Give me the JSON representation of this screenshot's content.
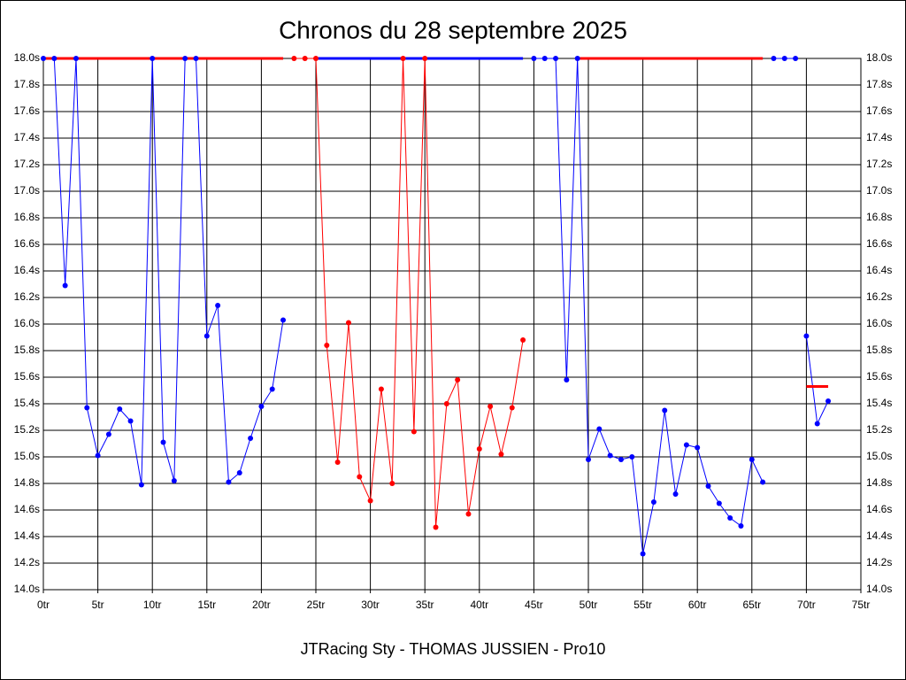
{
  "chart_data": {
    "type": "line",
    "title": "Chronos du 28 septembre 2025",
    "caption": "JTRacing Sty - THOMAS JUSSIEN - Pro10",
    "xlim": [
      0,
      75
    ],
    "xticks": [
      {
        "value": 0,
        "label": "0tr"
      },
      {
        "value": 5,
        "label": "5tr"
      },
      {
        "value": 10,
        "label": "10tr"
      },
      {
        "value": 15,
        "label": "15tr"
      },
      {
        "value": 20,
        "label": "20tr"
      },
      {
        "value": 25,
        "label": "25tr"
      },
      {
        "value": 30,
        "label": "30tr"
      },
      {
        "value": 35,
        "label": "35tr"
      },
      {
        "value": 40,
        "label": "40tr"
      },
      {
        "value": 45,
        "label": "45tr"
      },
      {
        "value": 50,
        "label": "50tr"
      },
      {
        "value": 55,
        "label": "55tr"
      },
      {
        "value": 60,
        "label": "60tr"
      },
      {
        "value": 65,
        "label": "65tr"
      },
      {
        "value": 70,
        "label": "70tr"
      },
      {
        "value": 75,
        "label": "75tr"
      }
    ],
    "ylim": [
      14.0,
      18.0
    ],
    "yticks": [
      {
        "value": 14.0,
        "label": "14.0s"
      },
      {
        "value": 14.2,
        "label": "14.2s"
      },
      {
        "value": 14.4,
        "label": "14.4s"
      },
      {
        "value": 14.6,
        "label": "14.6s"
      },
      {
        "value": 14.8,
        "label": "14.8s"
      },
      {
        "value": 15.0,
        "label": "15.0s"
      },
      {
        "value": 15.2,
        "label": "15.2s"
      },
      {
        "value": 15.4,
        "label": "15.4s"
      },
      {
        "value": 15.6,
        "label": "15.6s"
      },
      {
        "value": 15.8,
        "label": "15.8s"
      },
      {
        "value": 16.0,
        "label": "16.0s"
      },
      {
        "value": 16.2,
        "label": "16.2s"
      },
      {
        "value": 16.4,
        "label": "16.4s"
      },
      {
        "value": 16.6,
        "label": "16.6s"
      },
      {
        "value": 16.8,
        "label": "16.8s"
      },
      {
        "value": 17.0,
        "label": "17.0s"
      },
      {
        "value": 17.2,
        "label": "17.2s"
      },
      {
        "value": 17.4,
        "label": "17.4s"
      },
      {
        "value": 17.6,
        "label": "17.6s"
      },
      {
        "value": 17.8,
        "label": "17.8s"
      },
      {
        "value": 18.0,
        "label": "18.0s"
      }
    ],
    "grid": true,
    "series": [
      {
        "color": "#0000ff",
        "x": [
          0,
          1,
          2,
          3,
          4,
          5,
          6,
          7,
          8,
          9,
          10,
          11,
          12,
          13,
          14,
          15,
          16,
          17,
          18,
          19,
          20,
          21,
          22
        ],
        "values": [
          18.0,
          18.0,
          16.29,
          18.0,
          15.37,
          15.01,
          15.17,
          15.36,
          15.27,
          14.79,
          18.0,
          15.11,
          14.82,
          18.0,
          18.0,
          15.91,
          16.14,
          14.81,
          14.88,
          15.14,
          15.38,
          15.51,
          16.03
        ]
      },
      {
        "color": "#ff0000",
        "x": [
          23,
          24,
          25,
          26,
          27,
          28,
          29,
          30,
          31,
          32,
          33,
          34,
          35,
          36,
          37,
          38,
          39,
          40,
          41,
          42,
          43,
          44
        ],
        "values": [
          18.0,
          18.0,
          18.0,
          15.84,
          14.96,
          16.01,
          14.85,
          14.67,
          15.51,
          14.8,
          18.0,
          15.19,
          18.0,
          14.47,
          15.4,
          15.58,
          14.57,
          15.06,
          15.38,
          15.02,
          15.37,
          15.88
        ]
      },
      {
        "color": "#0000ff",
        "x": [
          45,
          46,
          47,
          48,
          49,
          50,
          51,
          52,
          53,
          54,
          55,
          56,
          57,
          58,
          59,
          60,
          61,
          62,
          63,
          64,
          65,
          66
        ],
        "values": [
          18.0,
          18.0,
          18.0,
          15.58,
          18.0,
          14.98,
          15.21,
          15.01,
          14.98,
          15.0,
          14.27,
          14.66,
          15.35,
          14.72,
          15.09,
          15.07,
          14.78,
          14.65,
          14.54,
          14.48,
          14.98,
          14.81
        ]
      },
      {
        "color": "#0000ff",
        "x": [
          67,
          68,
          69
        ],
        "values": [
          18.0,
          18.0,
          18.0
        ]
      },
      {
        "color": "#0000ff",
        "x": [
          70,
          71,
          72
        ],
        "values": [
          15.91,
          15.25,
          15.42
        ]
      }
    ],
    "bands": [
      {
        "from": 0,
        "to": 22,
        "color": "#ff0000"
      },
      {
        "from": 25,
        "to": 44,
        "color": "#0000ff"
      },
      {
        "from": 49,
        "to": 66,
        "color": "#ff0000"
      }
    ],
    "average": {
      "from": 70,
      "to": 72,
      "value": 15.53,
      "color": "#ff0000"
    }
  }
}
